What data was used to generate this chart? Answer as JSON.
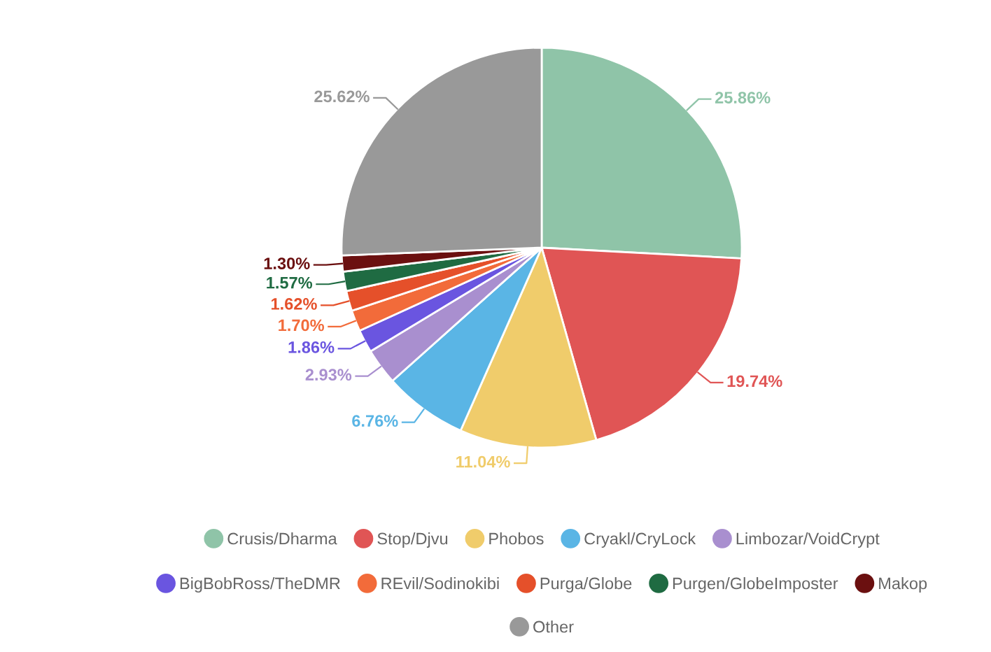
{
  "chart_data": {
    "type": "pie",
    "categories": [
      "Crusis/Dharma",
      "Stop/Djvu",
      "Phobos",
      "Cryakl/CryLock",
      "Limbozar/VoidCrypt",
      "BigBobRoss/TheDMR",
      "REvil/Sodinokibi",
      "Purga/Globe",
      "Purgen/GlobeImposter",
      "Makop",
      "Other"
    ],
    "values": [
      25.86,
      19.74,
      11.04,
      6.76,
      2.93,
      1.86,
      1.7,
      1.62,
      1.57,
      1.3,
      25.62
    ],
    "value_labels": [
      "25.86%",
      "19.74%",
      "11.04%",
      "6.76%",
      "2.93%",
      "1.86%",
      "1.70%",
      "1.62%",
      "1.57%",
      "1.30%",
      "25.62%"
    ],
    "colors": [
      "#8fc4a8",
      "#e05555",
      "#f0cc6b",
      "#5ab5e5",
      "#a98fcf",
      "#6a55e0",
      "#f26b3a",
      "#e5502a",
      "#1f6b42",
      "#6b1010",
      "#999999"
    ],
    "legend": "bottom"
  }
}
